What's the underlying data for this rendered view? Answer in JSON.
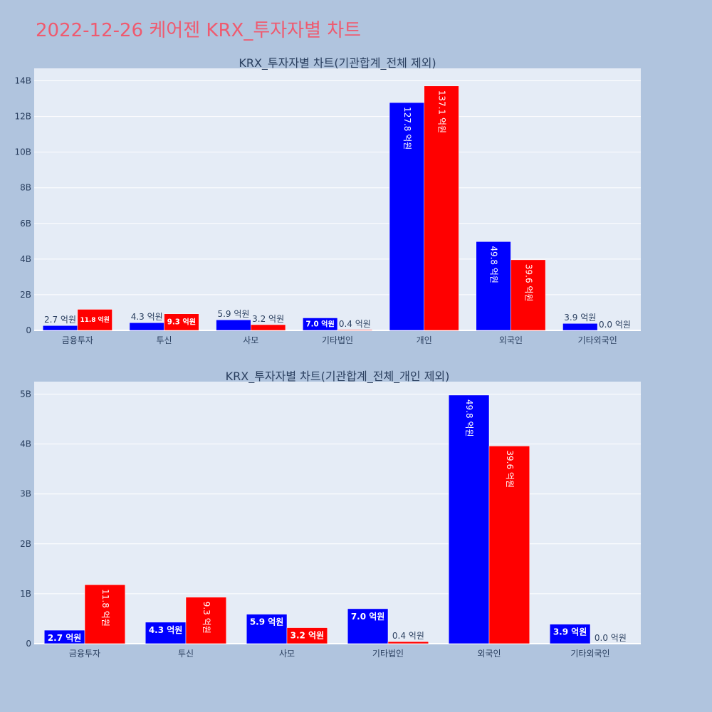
{
  "page": {
    "title": "2022-12-26 케어젠 KRX_투자자별 차트"
  },
  "colors": {
    "background": "#b0c4de",
    "plot_bg": "#e5ecf6",
    "grid": "#ffffff",
    "title": "#ef5a6f",
    "text": "#2a3f5f",
    "series_a": "#0000ff",
    "series_b": "#ff0000"
  },
  "chart_data": [
    {
      "type": "bar",
      "title": "KRX_투자자별 차트(기관합계_전체 제외)",
      "categories": [
        "금융투자",
        "투신",
        "사모",
        "기타법인",
        "개인",
        "외국인",
        "기타외국인"
      ],
      "series": [
        {
          "color": "#0000ff",
          "values": [
            270000000,
            430000000,
            590000000,
            700000000,
            12780000000,
            4980000000,
            390000000
          ],
          "labels": [
            "2.7 억원",
            "4.3 억원",
            "5.9 억원",
            "7.0 억원",
            "127.8 억원",
            "49.8 억원",
            "3.9 억원"
          ]
        },
        {
          "color": "#ff0000",
          "values": [
            1180000000,
            930000000,
            320000000,
            40000000,
            13710000000,
            3960000000,
            0
          ],
          "labels": [
            "11.8 억원",
            "9.3 억원",
            "3.2 억원",
            "0.4 억원",
            "137.1 억원",
            "39.6 억원",
            "0.0 억원"
          ]
        }
      ],
      "ylim": [
        0,
        14700000000
      ],
      "yticks": [
        0,
        2000000000,
        4000000000,
        6000000000,
        8000000000,
        10000000000,
        12000000000,
        14000000000
      ],
      "ytick_labels": [
        "0",
        "2B",
        "4B",
        "6B",
        "8B",
        "10B",
        "12B",
        "14B"
      ],
      "grid": true
    },
    {
      "type": "bar",
      "title": "KRX_투자자별 차트(기관합계_전체_개인 제외)",
      "categories": [
        "금융투자",
        "투신",
        "사모",
        "기타법인",
        "외국인",
        "기타외국인"
      ],
      "series": [
        {
          "color": "#0000ff",
          "values": [
            270000000,
            430000000,
            590000000,
            700000000,
            4980000000,
            390000000
          ],
          "labels": [
            "2.7 억원",
            "4.3 억원",
            "5.9 억원",
            "7.0 억원",
            "49.8 억원",
            "3.9 억원"
          ]
        },
        {
          "color": "#ff0000",
          "values": [
            1180000000,
            930000000,
            320000000,
            40000000,
            3960000000,
            0
          ],
          "labels": [
            "11.8 억원",
            "9.3 억원",
            "3.2 억원",
            "0.4 억원",
            "39.6 억원",
            "0.0 억원"
          ]
        }
      ],
      "ylim": [
        0,
        5250000000
      ],
      "yticks": [
        0,
        1000000000,
        2000000000,
        3000000000,
        4000000000,
        5000000000
      ],
      "ytick_labels": [
        "0",
        "1B",
        "2B",
        "3B",
        "4B",
        "5B"
      ],
      "grid": true
    }
  ]
}
